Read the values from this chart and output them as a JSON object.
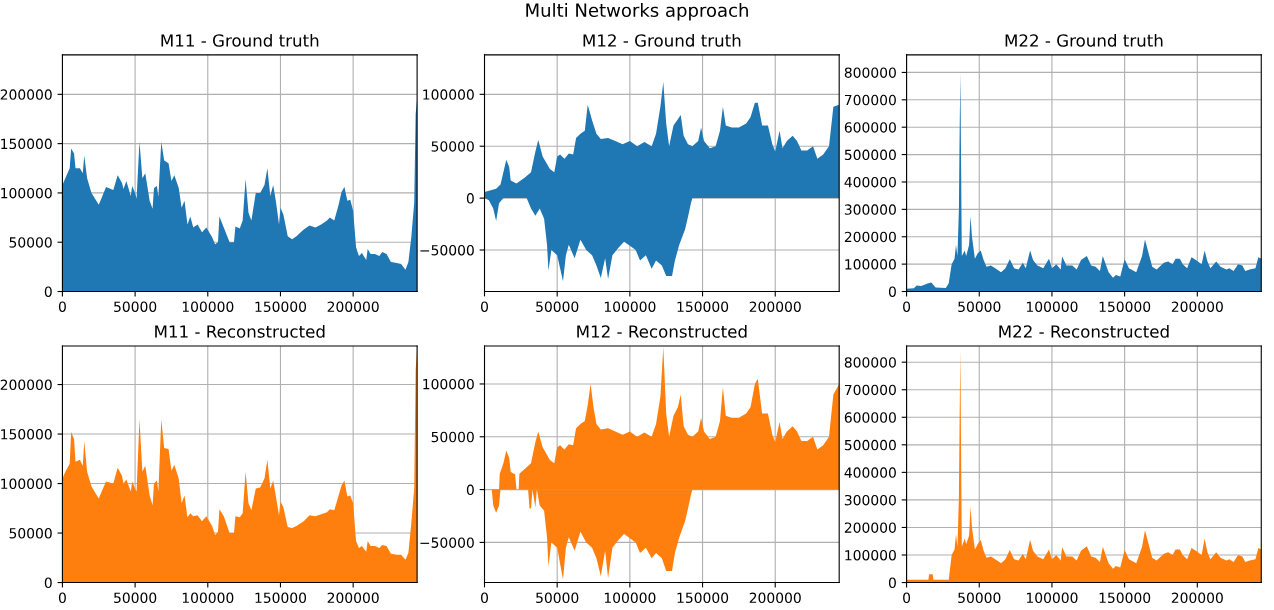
{
  "chart_data": [
    {
      "type": "area",
      "title": "M11 - Ground truth",
      "annotations": [
        "Multi Networks approach"
      ],
      "xlim": [
        0,
        244000
      ],
      "ylim": [
        0,
        240000
      ],
      "xticks": [
        0,
        50000,
        100000,
        150000,
        200000
      ],
      "yticks": [
        0,
        50000,
        100000,
        150000,
        200000
      ],
      "grid": true,
      "series": [
        {
          "color": "#1f77b4",
          "x": [
            0,
            2000,
            5000,
            6000,
            8000,
            9000,
            12000,
            14000,
            15000,
            17000,
            20000,
            25000,
            27000,
            30000,
            35000,
            38000,
            41000,
            42000,
            44000,
            47000,
            48000,
            50000,
            51000,
            53000,
            55000,
            57000,
            60000,
            62000,
            63000,
            65000,
            66000,
            68000,
            70000,
            73000,
            75000,
            77000,
            80000,
            82000,
            84000,
            86000,
            88000,
            90000,
            93000,
            96000,
            99000,
            103000,
            105000,
            107000,
            108000,
            111000,
            115000,
            118000,
            119000,
            122000,
            124000,
            126000,
            128000,
            130000,
            133000,
            136000,
            139000,
            141000,
            143000,
            145000,
            147000,
            149000,
            150000,
            152000,
            155000,
            158000,
            161000,
            166000,
            170000,
            174000,
            178000,
            182000,
            184000,
            187000,
            190000,
            192000,
            194000,
            196000,
            198000,
            200000,
            202000,
            204000,
            206000,
            209000,
            210000,
            212000,
            215000,
            218000,
            220000,
            223000,
            226000,
            230000,
            233000,
            236000,
            238000,
            240000,
            242000,
            243000,
            244000
          ],
          "values": [
            108000,
            115000,
            125000,
            145000,
            140000,
            125000,
            125000,
            120000,
            138000,
            115000,
            100000,
            88000,
            95000,
            106000,
            103000,
            118000,
            110000,
            104000,
            112000,
            97000,
            107000,
            100000,
            94000,
            152000,
            115000,
            120000,
            92000,
            84000,
            105000,
            107000,
            96000,
            152000,
            133000,
            130000,
            112000,
            118000,
            105000,
            85000,
            92000,
            68000,
            76000,
            65000,
            68000,
            60000,
            65000,
            55000,
            48000,
            50000,
            76000,
            65000,
            50000,
            50000,
            66000,
            64000,
            72000,
            114000,
            80000,
            72000,
            100000,
            100000,
            108000,
            125000,
            97000,
            108000,
            90000,
            68000,
            85000,
            78000,
            56000,
            53000,
            56000,
            63000,
            67000,
            65000,
            68000,
            72000,
            75000,
            72000,
            88000,
            101000,
            106000,
            92000,
            93000,
            82000,
            45000,
            36000,
            39000,
            32000,
            43000,
            38000,
            38000,
            36000,
            40000,
            38000,
            30000,
            29000,
            28000,
            22000,
            30000,
            55000,
            90000,
            180000,
            195000
          ]
        }
      ]
    },
    {
      "type": "area",
      "title": "M12 - Ground truth",
      "xlim": [
        0,
        244000
      ],
      "ylim": [
        -90000,
        138000
      ],
      "xticks": [
        0,
        50000,
        100000,
        150000,
        200000
      ],
      "yticks": [
        {
          "value": -50000,
          "label": "−50000"
        },
        0,
        50000,
        100000
      ],
      "grid": true,
      "series": [
        {
          "color": "#1f77b4",
          "x": [
            0,
            8000,
            11000,
            13000,
            15000,
            17000,
            18000,
            22000,
            28000,
            32000,
            35000,
            37000,
            40000,
            45000,
            48000,
            50000,
            52000,
            55000,
            58000,
            61000,
            63000,
            66000,
            69000,
            71000,
            74000,
            77000,
            80000,
            85000,
            90000,
            95000,
            100000,
            105000,
            110000,
            115000,
            118000,
            121000,
            123000,
            125000,
            127000,
            130000,
            133000,
            135000,
            137000,
            140000,
            143000,
            147000,
            149000,
            151000,
            155000,
            159000,
            162000,
            164000,
            166000,
            170000,
            175000,
            180000,
            183000,
            186000,
            188000,
            191000,
            195000,
            198000,
            200000,
            203000,
            205000,
            208000,
            212000,
            215000,
            218000,
            222000,
            226000,
            229000,
            233000,
            237000,
            240000,
            244000
          ],
          "values": [
            6000,
            9000,
            13000,
            25000,
            37000,
            30000,
            17000,
            14000,
            20000,
            25000,
            45000,
            56000,
            40000,
            28000,
            25000,
            40000,
            42000,
            38000,
            43000,
            42000,
            58000,
            62000,
            65000,
            90000,
            75000,
            62000,
            57000,
            58000,
            55000,
            52000,
            55000,
            50000,
            54000,
            50000,
            62000,
            88000,
            112000,
            72000,
            50000,
            70000,
            76000,
            80000,
            60000,
            52000,
            50000,
            55000,
            68000,
            55000,
            48000,
            50000,
            65000,
            88000,
            70000,
            68000,
            68000,
            72000,
            78000,
            92000,
            92000,
            70000,
            70000,
            52000,
            45000,
            65000,
            48000,
            55000,
            60000,
            55000,
            46000,
            46000,
            50000,
            38000,
            42000,
            50000,
            88000,
            90000
          ]
        },
        {
          "color": "#1f77b4",
          "x": [
            0,
            3000,
            6000,
            8000,
            10000,
            13000,
            29000,
            32000,
            35000,
            38000,
            41000,
            43000,
            44000,
            46000,
            50000,
            54000,
            56000,
            58000,
            62000,
            66000,
            70000,
            74000,
            77000,
            80000,
            83000,
            85000,
            88000,
            92000,
            96000,
            100000,
            104000,
            107000,
            111000,
            115000,
            118000,
            122000,
            125000,
            129000,
            131000,
            134000,
            138000,
            140000,
            142000,
            143000,
            244000
          ],
          "values": [
            0,
            -2000,
            -10000,
            -22000,
            -5000,
            0,
            0,
            -10000,
            -17000,
            -10000,
            -20000,
            -45000,
            -70000,
            -50000,
            -55000,
            -80000,
            -55000,
            -45000,
            -58000,
            -40000,
            -50000,
            -55000,
            -65000,
            -77000,
            -58000,
            -78000,
            -55000,
            -48000,
            -42000,
            -46000,
            -50000,
            -60000,
            -55000,
            -68000,
            -60000,
            -65000,
            -75000,
            -75000,
            -60000,
            -45000,
            -30000,
            -18000,
            -5000,
            0,
            0
          ]
        }
      ]
    },
    {
      "type": "area",
      "title": "M22 - Ground truth",
      "xlim": [
        0,
        244000
      ],
      "ylim": [
        0,
        864000
      ],
      "xticks": [
        0,
        50000,
        100000,
        150000,
        200000
      ],
      "yticks": [
        0,
        100000,
        200000,
        300000,
        400000,
        500000,
        600000,
        700000,
        800000
      ],
      "grid": true,
      "series": [
        {
          "color": "#1f77b4",
          "x": [
            0,
            5000,
            7000,
            10000,
            15000,
            17000,
            20000,
            27000,
            29000,
            31000,
            33000,
            34000,
            35000,
            36000,
            36500,
            37000,
            37500,
            38000,
            40000,
            41000,
            43000,
            44000,
            45000,
            47000,
            49000,
            51000,
            53000,
            55000,
            58000,
            61000,
            65000,
            68000,
            71000,
            74000,
            77000,
            80000,
            82000,
            85000,
            87000,
            90000,
            94000,
            98000,
            100000,
            103000,
            106000,
            107000,
            110000,
            114000,
            117000,
            120000,
            124000,
            127000,
            130000,
            133000,
            135000,
            137000,
            139000,
            142000,
            144000,
            147000,
            150000,
            153000,
            158000,
            162000,
            164000,
            166000,
            169000,
            172000,
            177000,
            180000,
            183000,
            185000,
            188000,
            190000,
            193000,
            196000,
            199000,
            203000,
            205000,
            207000,
            209000,
            213000,
            216000,
            220000,
            222000,
            225000,
            228000,
            231000,
            233000,
            236000,
            240000,
            242000,
            244000
          ],
          "values": [
            10000,
            12000,
            22000,
            20000,
            30000,
            33000,
            15000,
            13000,
            30000,
            100000,
            120000,
            170000,
            130000,
            300000,
            580000,
            800000,
            470000,
            130000,
            150000,
            130000,
            170000,
            275000,
            200000,
            120000,
            140000,
            150000,
            115000,
            90000,
            95000,
            85000,
            70000,
            85000,
            118000,
            85000,
            80000,
            105000,
            85000,
            150000,
            115000,
            95000,
            85000,
            120000,
            85000,
            100000,
            80000,
            128000,
            95000,
            95000,
            80000,
            115000,
            130000,
            95000,
            90000,
            75000,
            130000,
            100000,
            70000,
            50000,
            60000,
            55000,
            118000,
            85000,
            70000,
            130000,
            190000,
            150000,
            90000,
            80000,
            105000,
            110000,
            100000,
            120000,
            120000,
            100000,
            85000,
            125000,
            115000,
            100000,
            150000,
            110000,
            85000,
            110000,
            90000,
            80000,
            85000,
            75000,
            100000,
            95000,
            75000,
            80000,
            85000,
            125000,
            120000
          ]
        }
      ]
    },
    {
      "type": "area",
      "title": "M11 - Reconstructed",
      "xlim": [
        0,
        244000
      ],
      "ylim": [
        0,
        239000
      ],
      "xticks": [
        0,
        50000,
        100000,
        150000,
        200000
      ],
      "yticks": [
        0,
        50000,
        100000,
        150000,
        200000
      ],
      "grid": true,
      "series": [
        {
          "color": "#ff7f0e",
          "x": [
            0,
            2000,
            5000,
            6000,
            8000,
            9000,
            12000,
            14000,
            15000,
            17000,
            20000,
            25000,
            27000,
            30000,
            35000,
            38000,
            41000,
            42000,
            44000,
            47000,
            48000,
            50000,
            51000,
            53000,
            55000,
            57000,
            60000,
            62000,
            63000,
            65000,
            66000,
            68000,
            70000,
            73000,
            75000,
            77000,
            80000,
            82000,
            84000,
            86000,
            88000,
            90000,
            93000,
            96000,
            99000,
            103000,
            105000,
            107000,
            108000,
            111000,
            115000,
            118000,
            119000,
            122000,
            124000,
            126000,
            128000,
            130000,
            133000,
            136000,
            139000,
            141000,
            143000,
            145000,
            147000,
            149000,
            150000,
            152000,
            155000,
            158000,
            161000,
            166000,
            170000,
            174000,
            178000,
            182000,
            184000,
            187000,
            190000,
            192000,
            194000,
            196000,
            198000,
            200000,
            202000,
            204000,
            206000,
            209000,
            210000,
            212000,
            215000,
            218000,
            220000,
            223000,
            226000,
            230000,
            233000,
            236000,
            238000,
            240000,
            242000,
            243000,
            244000
          ],
          "values": [
            105000,
            112000,
            120000,
            152000,
            145000,
            122000,
            124000,
            118000,
            143000,
            112000,
            97000,
            85000,
            92000,
            102000,
            100000,
            116000,
            108000,
            100000,
            104000,
            92000,
            102000,
            95000,
            92000,
            165000,
            112000,
            118000,
            88000,
            78000,
            100000,
            103000,
            92000,
            165000,
            136000,
            135000,
            113000,
            119000,
            105000,
            80000,
            88000,
            66000,
            70000,
            67000,
            68000,
            62000,
            67000,
            57000,
            48000,
            51000,
            74000,
            67000,
            50000,
            50000,
            67000,
            66000,
            70000,
            112000,
            80000,
            73000,
            95000,
            96000,
            105000,
            124000,
            95000,
            103000,
            86000,
            68000,
            82000,
            76000,
            56000,
            55000,
            57000,
            62000,
            68000,
            67000,
            69000,
            71000,
            74000,
            73000,
            88000,
            98000,
            103000,
            87000,
            88000,
            80000,
            42000,
            35000,
            37000,
            31000,
            42000,
            37000,
            37000,
            35000,
            38000,
            37000,
            29000,
            28000,
            28000,
            23000,
            30000,
            60000,
            95000,
            215000,
            236000
          ]
        }
      ]
    },
    {
      "type": "area",
      "title": "M12 - Reconstructed",
      "xlim": [
        0,
        244000
      ],
      "ylim": [
        -88000,
        136000
      ],
      "xticks": [
        0,
        50000,
        100000,
        150000,
        200000
      ],
      "yticks": [
        {
          "value": -50000,
          "label": "−50000"
        },
        0,
        50000,
        100000
      ],
      "grid": true,
      "series": [
        {
          "color": "#ff7f0e",
          "x": [
            0,
            10000,
            10500,
            13000,
            15000,
            17000,
            18000,
            20000,
            21000,
            22000,
            23500,
            24000,
            28000,
            32000,
            35000,
            37000,
            40000,
            45000,
            48000,
            50000,
            52000,
            55000,
            58000,
            61000,
            63000,
            66000,
            69000,
            71000,
            73000,
            75000,
            77000,
            80000,
            85000,
            90000,
            95000,
            100000,
            105000,
            110000,
            115000,
            118000,
            121000,
            123000,
            125000,
            127000,
            130000,
            133000,
            135000,
            137000,
            140000,
            143000,
            147000,
            149000,
            151000,
            155000,
            159000,
            162000,
            164000,
            166000,
            170000,
            175000,
            180000,
            183000,
            186000,
            188000,
            191000,
            195000,
            198000,
            200000,
            203000,
            205000,
            208000,
            212000,
            215000,
            218000,
            222000,
            226000,
            229000,
            233000,
            237000,
            240000,
            244000
          ],
          "values": [
            0,
            0,
            15000,
            25000,
            37000,
            30000,
            17000,
            15000,
            15000,
            0,
            0,
            15000,
            20000,
            25000,
            45000,
            55000,
            40000,
            28000,
            25000,
            40000,
            42000,
            38000,
            43000,
            42000,
            58000,
            62000,
            65000,
            80000,
            100000,
            78000,
            62000,
            57000,
            58000,
            55000,
            52000,
            55000,
            50000,
            54000,
            50000,
            62000,
            88000,
            135000,
            72000,
            50000,
            70000,
            78000,
            90000,
            60000,
            52000,
            50000,
            55000,
            68000,
            55000,
            48000,
            50000,
            65000,
            97000,
            70000,
            68000,
            68000,
            72000,
            78000,
            100000,
            105000,
            72000,
            72000,
            52000,
            45000,
            64000,
            48000,
            55000,
            60000,
            55000,
            46000,
            46000,
            50000,
            38000,
            42000,
            50000,
            90000,
            100000
          ]
        },
        {
          "color": "#ff7f0e",
          "x": [
            0,
            5000,
            6000,
            8000,
            10000,
            11000,
            30000,
            31000,
            32000,
            33000,
            35000,
            36000,
            38000,
            41000,
            43000,
            44000,
            46000,
            50000,
            54000,
            56000,
            58000,
            62000,
            66000,
            70000,
            74000,
            77000,
            80000,
            83000,
            85000,
            88000,
            92000,
            96000,
            100000,
            104000,
            107000,
            111000,
            115000,
            118000,
            122000,
            125000,
            129000,
            131000,
            134000,
            138000,
            140000,
            142000,
            143000,
            244000
          ],
          "values": [
            0,
            0,
            -15000,
            -22000,
            -15000,
            0,
            0,
            -18000,
            -18000,
            0,
            -17000,
            0,
            -15000,
            -20000,
            -45000,
            -73000,
            -50000,
            -55000,
            -85000,
            -55000,
            -45000,
            -58000,
            -40000,
            -50000,
            -55000,
            -65000,
            -82000,
            -58000,
            -84000,
            -55000,
            -48000,
            -42000,
            -46000,
            -50000,
            -60000,
            -55000,
            -65000,
            -60000,
            -65000,
            -77000,
            -77000,
            -60000,
            -45000,
            -30000,
            -18000,
            -5000,
            0,
            0
          ]
        }
      ]
    },
    {
      "type": "area",
      "title": "M22 - Reconstructed",
      "xlim": [
        0,
        244000
      ],
      "ylim": [
        0,
        859000
      ],
      "xticks": [
        0,
        50000,
        100000,
        150000,
        200000
      ],
      "yticks": [
        0,
        100000,
        200000,
        300000,
        400000,
        500000,
        600000,
        700000,
        800000
      ],
      "grid": true,
      "series": [
        {
          "color": "#ff7f0e",
          "x": [
            0,
            15000,
            15500,
            18000,
            18500,
            29000,
            31000,
            33000,
            34000,
            35000,
            36000,
            36500,
            37000,
            37500,
            38000,
            40000,
            41000,
            43000,
            44000,
            45000,
            47000,
            49000,
            51000,
            53000,
            55000,
            58000,
            61000,
            65000,
            68000,
            71000,
            74000,
            77000,
            80000,
            82000,
            85000,
            87000,
            90000,
            94000,
            98000,
            100000,
            103000,
            106000,
            107000,
            110000,
            114000,
            117000,
            120000,
            124000,
            127000,
            130000,
            133000,
            135000,
            137000,
            139000,
            142000,
            144000,
            147000,
            150000,
            153000,
            158000,
            162000,
            164000,
            166000,
            169000,
            172000,
            177000,
            180000,
            183000,
            185000,
            188000,
            190000,
            193000,
            196000,
            199000,
            203000,
            205000,
            207000,
            209000,
            213000,
            216000,
            220000,
            222000,
            225000,
            228000,
            231000,
            233000,
            236000,
            240000,
            242000,
            244000
          ],
          "values": [
            10000,
            10000,
            30000,
            30000,
            10000,
            10000,
            100000,
            120000,
            175000,
            130000,
            310000,
            600000,
            845000,
            470000,
            130000,
            160000,
            140000,
            170000,
            275000,
            200000,
            120000,
            140000,
            155000,
            115000,
            90000,
            95000,
            85000,
            70000,
            85000,
            118000,
            85000,
            80000,
            105000,
            85000,
            155000,
            115000,
            95000,
            85000,
            120000,
            85000,
            100000,
            80000,
            128000,
            95000,
            95000,
            80000,
            115000,
            132000,
            95000,
            90000,
            75000,
            130000,
            100000,
            70000,
            50000,
            60000,
            55000,
            118000,
            85000,
            70000,
            130000,
            190000,
            150000,
            90000,
            80000,
            105000,
            110000,
            100000,
            120000,
            120000,
            100000,
            85000,
            125000,
            115000,
            100000,
            160000,
            110000,
            85000,
            110000,
            90000,
            80000,
            85000,
            75000,
            100000,
            95000,
            75000,
            80000,
            85000,
            125000,
            120000
          ]
        }
      ]
    }
  ]
}
